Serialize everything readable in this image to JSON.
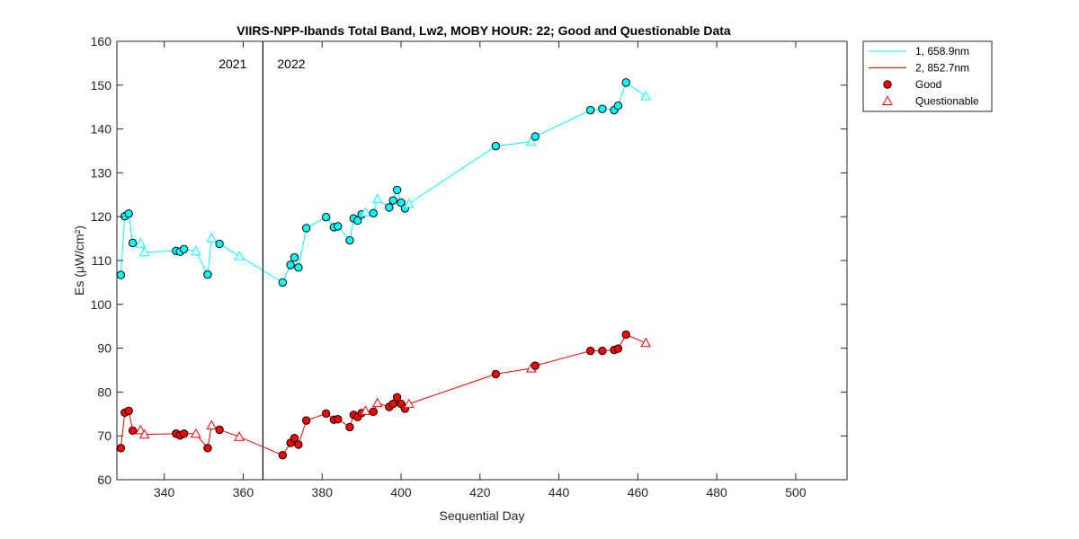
{
  "chart_data": {
    "type": "line",
    "title": "VIIRS-NPP-Ibands Total Band,  Lw2, MOBY HOUR: 22;  Good and Questionable Data",
    "xlabel": "Sequential Day",
    "ylabel": "Es (μW/cm²)",
    "xlim": [
      328,
      513
    ],
    "ylim": [
      60,
      160
    ],
    "xticks": [
      340,
      360,
      380,
      400,
      420,
      440,
      460,
      480,
      500
    ],
    "yticks": [
      60,
      70,
      80,
      90,
      100,
      110,
      120,
      130,
      140,
      150,
      160
    ],
    "grid": false,
    "legend_position": "outside-top-right",
    "year_divider": {
      "x": 365,
      "left_label": "2021",
      "right_label": "2022"
    },
    "series": [
      {
        "name": "1, 658.9nm",
        "color": "#00FFFF",
        "points": [
          {
            "x": 329,
            "y": 106.7,
            "q": "good"
          },
          {
            "x": 330,
            "y": 120.1,
            "q": "good"
          },
          {
            "x": 331,
            "y": 120.7,
            "q": "good"
          },
          {
            "x": 332,
            "y": 114.0,
            "q": "good"
          },
          {
            "x": 334,
            "y": 113.9,
            "q": "questionable"
          },
          {
            "x": 335,
            "y": 111.9,
            "q": "questionable"
          },
          {
            "x": 343,
            "y": 112.2,
            "q": "good"
          },
          {
            "x": 344,
            "y": 112.0,
            "q": "good"
          },
          {
            "x": 345,
            "y": 112.6,
            "q": "good"
          },
          {
            "x": 348,
            "y": 112.1,
            "q": "questionable"
          },
          {
            "x": 351,
            "y": 106.8,
            "q": "good"
          },
          {
            "x": 352,
            "y": 115.1,
            "q": "questionable"
          },
          {
            "x": 354,
            "y": 113.8,
            "q": "good"
          },
          {
            "x": 359,
            "y": 111.0,
            "q": "questionable"
          },
          {
            "x": 370,
            "y": 105.0,
            "q": "good"
          },
          {
            "x": 372,
            "y": 109.0,
            "q": "good"
          },
          {
            "x": 373,
            "y": 110.7,
            "q": "good"
          },
          {
            "x": 374,
            "y": 108.4,
            "q": "good"
          },
          {
            "x": 376,
            "y": 117.4,
            "q": "good"
          },
          {
            "x": 381,
            "y": 119.9,
            "q": "good"
          },
          {
            "x": 383,
            "y": 117.6,
            "q": "good"
          },
          {
            "x": 384,
            "y": 117.8,
            "q": "good"
          },
          {
            "x": 387,
            "y": 114.6,
            "q": "good"
          },
          {
            "x": 388,
            "y": 119.6,
            "q": "good"
          },
          {
            "x": 389,
            "y": 119.1,
            "q": "good"
          },
          {
            "x": 390,
            "y": 120.5,
            "q": "good"
          },
          {
            "x": 391,
            "y": 121.0,
            "q": "questionable"
          },
          {
            "x": 393,
            "y": 120.8,
            "q": "good"
          },
          {
            "x": 394,
            "y": 124.0,
            "q": "questionable"
          },
          {
            "x": 397,
            "y": 122.1,
            "q": "good"
          },
          {
            "x": 398,
            "y": 123.7,
            "q": "good"
          },
          {
            "x": 399,
            "y": 126.1,
            "q": "good"
          },
          {
            "x": 400,
            "y": 123.2,
            "q": "good"
          },
          {
            "x": 401,
            "y": 121.9,
            "q": "good"
          },
          {
            "x": 402,
            "y": 123.0,
            "q": "questionable"
          },
          {
            "x": 424,
            "y": 136.1,
            "q": "good"
          },
          {
            "x": 433,
            "y": 137.1,
            "q": "questionable"
          },
          {
            "x": 434,
            "y": 138.3,
            "q": "good"
          },
          {
            "x": 448,
            "y": 144.3,
            "q": "good"
          },
          {
            "x": 451,
            "y": 144.6,
            "q": "good"
          },
          {
            "x": 454,
            "y": 144.3,
            "q": "good"
          },
          {
            "x": 455,
            "y": 145.3,
            "q": "good"
          },
          {
            "x": 457,
            "y": 150.6,
            "q": "good"
          },
          {
            "x": 462,
            "y": 147.5,
            "q": "questionable"
          }
        ]
      },
      {
        "name": "2, 852.7nm",
        "color": "#FF0000",
        "points": [
          {
            "x": 329,
            "y": 67.2,
            "q": "good"
          },
          {
            "x": 330,
            "y": 75.3,
            "q": "good"
          },
          {
            "x": 331,
            "y": 75.7,
            "q": "good"
          },
          {
            "x": 332,
            "y": 71.2,
            "q": "good"
          },
          {
            "x": 334,
            "y": 71.3,
            "q": "questionable"
          },
          {
            "x": 335,
            "y": 70.3,
            "q": "questionable"
          },
          {
            "x": 343,
            "y": 70.5,
            "q": "good"
          },
          {
            "x": 344,
            "y": 70.1,
            "q": "good"
          },
          {
            "x": 345,
            "y": 70.5,
            "q": "good"
          },
          {
            "x": 348,
            "y": 70.5,
            "q": "questionable"
          },
          {
            "x": 351,
            "y": 67.2,
            "q": "good"
          },
          {
            "x": 352,
            "y": 72.4,
            "q": "questionable"
          },
          {
            "x": 354,
            "y": 71.4,
            "q": "good"
          },
          {
            "x": 359,
            "y": 69.8,
            "q": "questionable"
          },
          {
            "x": 370,
            "y": 65.6,
            "q": "good"
          },
          {
            "x": 372,
            "y": 68.4,
            "q": "good"
          },
          {
            "x": 373,
            "y": 69.5,
            "q": "good"
          },
          {
            "x": 374,
            "y": 68.0,
            "q": "good"
          },
          {
            "x": 376,
            "y": 73.5,
            "q": "good"
          },
          {
            "x": 381,
            "y": 75.1,
            "q": "good"
          },
          {
            "x": 383,
            "y": 73.7,
            "q": "good"
          },
          {
            "x": 384,
            "y": 73.8,
            "q": "good"
          },
          {
            "x": 387,
            "y": 72.0,
            "q": "good"
          },
          {
            "x": 388,
            "y": 74.8,
            "q": "good"
          },
          {
            "x": 389,
            "y": 74.3,
            "q": "good"
          },
          {
            "x": 390,
            "y": 75.2,
            "q": "good"
          },
          {
            "x": 391,
            "y": 75.7,
            "q": "questionable"
          },
          {
            "x": 393,
            "y": 75.5,
            "q": "good"
          },
          {
            "x": 394,
            "y": 77.5,
            "q": "questionable"
          },
          {
            "x": 397,
            "y": 76.6,
            "q": "good"
          },
          {
            "x": 398,
            "y": 77.3,
            "q": "good"
          },
          {
            "x": 399,
            "y": 78.8,
            "q": "good"
          },
          {
            "x": 400,
            "y": 77.3,
            "q": "good"
          },
          {
            "x": 401,
            "y": 76.2,
            "q": "good"
          },
          {
            "x": 402,
            "y": 77.3,
            "q": "questionable"
          },
          {
            "x": 424,
            "y": 84.1,
            "q": "good"
          },
          {
            "x": 433,
            "y": 85.4,
            "q": "questionable"
          },
          {
            "x": 434,
            "y": 86.0,
            "q": "good"
          },
          {
            "x": 448,
            "y": 89.4,
            "q": "good"
          },
          {
            "x": 451,
            "y": 89.4,
            "q": "good"
          },
          {
            "x": 454,
            "y": 89.6,
            "q": "good"
          },
          {
            "x": 455,
            "y": 89.9,
            "q": "good"
          },
          {
            "x": 457,
            "y": 93.1,
            "q": "good"
          },
          {
            "x": 462,
            "y": 91.2,
            "q": "questionable"
          }
        ]
      }
    ],
    "legend": {
      "entries": [
        {
          "label": "1, 658.9nm",
          "kind": "line",
          "color": "#00FFFF"
        },
        {
          "label": "2, 852.7nm",
          "kind": "line",
          "color": "#FF0000"
        },
        {
          "label": "Good",
          "kind": "circle",
          "color": "#FF0000"
        },
        {
          "label": "Questionable",
          "kind": "triangle",
          "color": "#FF0000"
        }
      ]
    }
  }
}
